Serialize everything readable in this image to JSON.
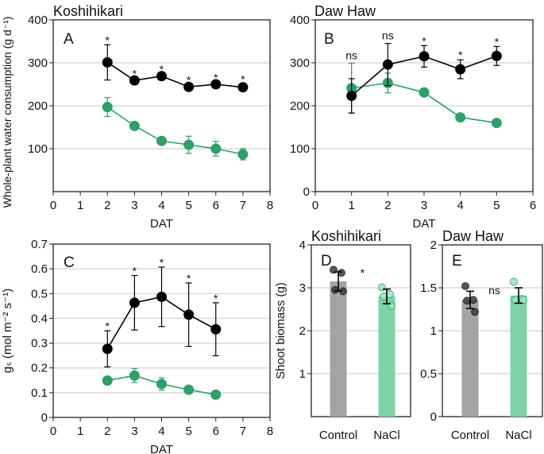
{
  "colors": {
    "control": "#000000",
    "nacl": "#2e9e6a",
    "bar_control": "#a3a3a3",
    "bar_nacl": "#7dd3a6",
    "nacl_label": "#2e9e6a",
    "grid": "#d9d9d9"
  },
  "chart_data": [
    {
      "id": "A",
      "type": "line",
      "panel_label": "A",
      "title": "Koshihikari",
      "xlabel": "DAT",
      "ylabel": "Whole-plant water consumption (g d⁻¹)",
      "xlim": [
        0,
        8
      ],
      "ylim": [
        0,
        400
      ],
      "xticks": [
        0,
        1,
        2,
        3,
        4,
        5,
        6,
        7,
        8
      ],
      "yticks": [
        100,
        200,
        300,
        400
      ],
      "grid": true,
      "x": [
        2,
        3,
        4,
        5,
        6,
        7
      ],
      "series": [
        {
          "key": "control",
          "values": [
            301,
            259,
            269,
            244,
            250,
            243
          ],
          "err": [
            41,
            5,
            5,
            5,
            5,
            8
          ]
        },
        {
          "key": "nacl",
          "values": [
            197,
            153,
            118,
            109,
            100,
            87
          ],
          "err": [
            22,
            7,
            8,
            20,
            17,
            13
          ]
        }
      ],
      "significance": [
        "*",
        "*",
        "*",
        "*",
        "*",
        "*"
      ]
    },
    {
      "id": "B",
      "type": "line",
      "panel_label": "B",
      "title": "Daw Haw",
      "xlabel": "DAT",
      "ylabel": "",
      "xlim": [
        0,
        6
      ],
      "ylim": [
        0,
        400
      ],
      "xticks": [
        0,
        1,
        2,
        3,
        4,
        5,
        6
      ],
      "yticks": [
        0,
        100,
        200,
        300,
        400
      ],
      "grid": true,
      "x": [
        1,
        2,
        3,
        4,
        5
      ],
      "series": [
        {
          "key": "control",
          "values": [
            223,
            296,
            315,
            285,
            316
          ],
          "err": [
            40,
            49,
            25,
            22,
            22
          ]
        },
        {
          "key": "nacl",
          "values": [
            241,
            253,
            231,
            173,
            160
          ],
          "err": [
            58,
            23,
            3,
            3,
            3
          ]
        }
      ],
      "significance": [
        "ns",
        "ns",
        "*",
        "*",
        "*"
      ]
    },
    {
      "id": "C",
      "type": "line",
      "panel_label": "C",
      "title": "",
      "xlabel": "DAT",
      "ylabel": "gₛ (mol m⁻² s⁻¹)",
      "xlim": [
        0,
        8
      ],
      "ylim": [
        0,
        0.7
      ],
      "xticks": [
        0,
        1,
        2,
        3,
        4,
        5,
        6,
        7,
        8
      ],
      "yticks": [
        0,
        0.1,
        0.2,
        0.3,
        0.4,
        0.5,
        0.6,
        0.7
      ],
      "grid": true,
      "x": [
        2,
        3,
        4,
        5,
        6
      ],
      "series": [
        {
          "key": "control",
          "values": [
            0.277,
            0.463,
            0.487,
            0.415,
            0.356
          ],
          "err": [
            0.073,
            0.11,
            0.12,
            0.128,
            0.107
          ]
        },
        {
          "key": "nacl",
          "values": [
            0.149,
            0.169,
            0.135,
            0.112,
            0.092
          ],
          "err": [
            0.01,
            0.028,
            0.025,
            0.005,
            0.005
          ]
        }
      ],
      "significance": [
        "*",
        "*",
        "*",
        "*",
        "*"
      ]
    },
    {
      "id": "D",
      "type": "bar",
      "panel_label": "D",
      "title": "Koshihikari",
      "xlabel": "",
      "ylabel": "Shoot biomass (g)",
      "ylim": [
        0,
        4
      ],
      "yticks": [
        1,
        2,
        3,
        4
      ],
      "grid": true,
      "categories": [
        "Control",
        "NaCl"
      ],
      "values": [
        3.15,
        2.8
      ],
      "err": [
        0.22,
        0.17
      ],
      "points": [
        [
          3.42,
          3.35,
          2.95,
          2.92
        ],
        [
          3.01,
          2.85,
          2.8,
          2.58
        ]
      ],
      "significance": "*"
    },
    {
      "id": "E",
      "type": "bar",
      "panel_label": "E",
      "title": "Daw Haw",
      "xlabel": "",
      "ylabel": "",
      "ylim": [
        0,
        2
      ],
      "yticks": [
        0,
        0.5,
        1,
        1.5,
        2
      ],
      "grid": true,
      "categories": [
        "Control",
        "NaCl"
      ],
      "values": [
        1.36,
        1.41
      ],
      "err": [
        0.1,
        0.09
      ],
      "points": [
        [
          1.52,
          1.36,
          1.35,
          1.22
        ],
        [
          1.57,
          1.37,
          1.36,
          1.36
        ]
      ],
      "significance": "ns"
    }
  ]
}
